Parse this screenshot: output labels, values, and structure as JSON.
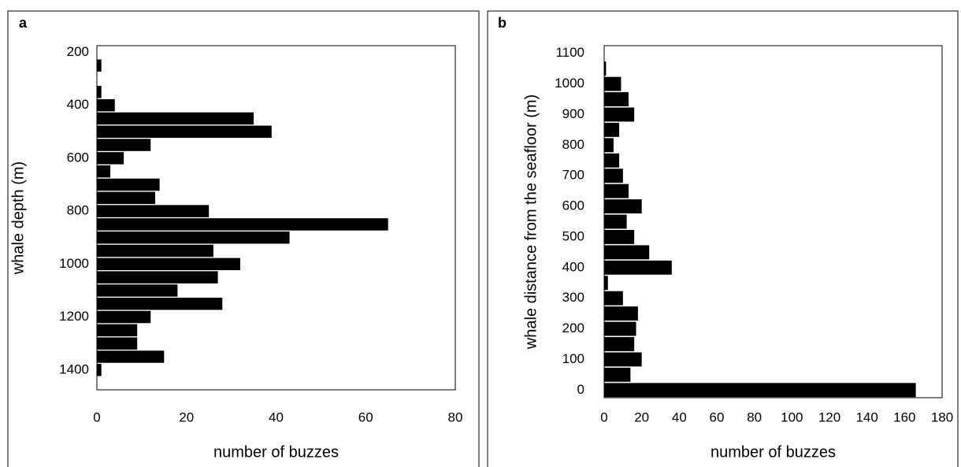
{
  "chart_data": [
    {
      "type": "bar",
      "orientation": "horizontal",
      "panel_label": "a",
      "y_label": "whale depth (m)",
      "x_label": "number of buzzes",
      "y": [
        250,
        300,
        350,
        400,
        450,
        500,
        550,
        600,
        650,
        700,
        750,
        800,
        850,
        900,
        950,
        1000,
        1050,
        1100,
        1150,
        1200,
        1250,
        1300,
        1350,
        1400
      ],
      "values": [
        1,
        0,
        1,
        4,
        35,
        39,
        12,
        6,
        3,
        14,
        13,
        25,
        65,
        43,
        26,
        32,
        27,
        18,
        28,
        12,
        9,
        9,
        15,
        1
      ],
      "color": "#000000",
      "xlim": [
        0,
        80
      ],
      "xticks": [
        0,
        20,
        40,
        60,
        80
      ],
      "ylim": [
        175,
        1475
      ],
      "yticks": [
        200,
        400,
        600,
        800,
        1000,
        1200,
        1400
      ],
      "y_inverted": true
    },
    {
      "type": "bar",
      "orientation": "horizontal",
      "panel_label": "b",
      "y_label": "whale distance from the seafloor (m)",
      "x_label": "number of buzzes",
      "y": [
        0,
        50,
        100,
        150,
        200,
        250,
        300,
        350,
        400,
        450,
        500,
        550,
        600,
        650,
        700,
        750,
        800,
        850,
        900,
        950,
        1000,
        1050
      ],
      "values": [
        166,
        14,
        20,
        16,
        17,
        18,
        10,
        2,
        36,
        24,
        16,
        12,
        20,
        13,
        10,
        8,
        5,
        8,
        16,
        13,
        9,
        1
      ],
      "color": "#000000",
      "xlim": [
        0,
        180
      ],
      "xticks": [
        0,
        20,
        40,
        60,
        80,
        100,
        120,
        140,
        160,
        180
      ],
      "ylim": [
        -25,
        1125
      ],
      "yticks": [
        0,
        100,
        200,
        300,
        400,
        500,
        600,
        700,
        800,
        900,
        1000,
        1100
      ],
      "y_inverted": false
    }
  ]
}
